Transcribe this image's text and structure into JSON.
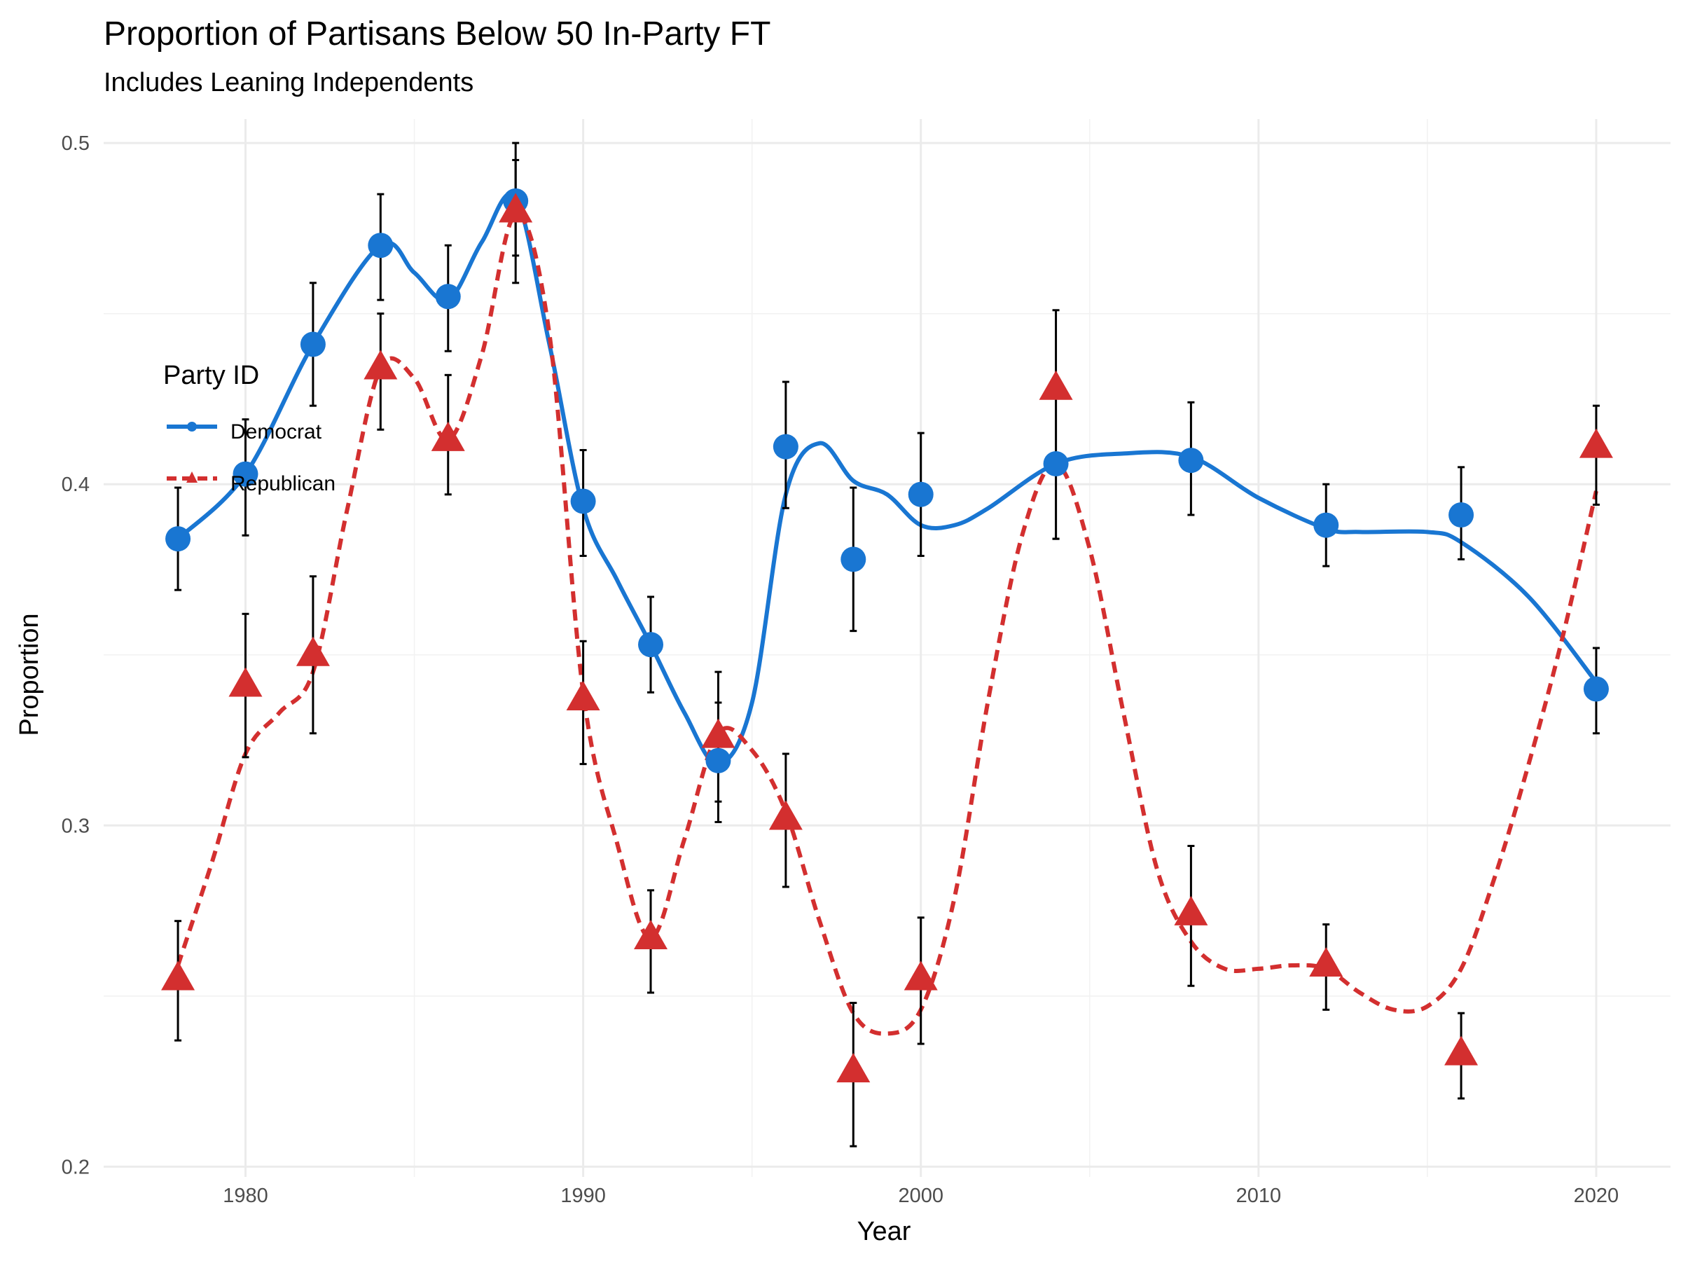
{
  "chart_data": {
    "type": "line",
    "title": "Proportion of Partisans Below 50 In-Party FT",
    "subtitle": "Includes Leaning Independents",
    "xlabel": "Year",
    "ylabel": "Proportion",
    "xlim": [
      1975.8,
      2022.2
    ],
    "ylim": [
      0.197,
      0.507
    ],
    "x_ticks": [
      1980,
      1990,
      2000,
      2010,
      2020
    ],
    "y_ticks": [
      0.2,
      0.3,
      0.4,
      0.5
    ],
    "x_tick_labels": [
      "1980",
      "1990",
      "2000",
      "2010",
      "2020"
    ],
    "y_tick_labels": [
      "0.2",
      "0.3",
      "0.4",
      "0.5"
    ],
    "grid": true,
    "legend": {
      "title": "Party ID",
      "position": "left"
    },
    "series": [
      {
        "name": "Democrat",
        "color": "#1976d2",
        "marker": "circle",
        "line_style": "solid",
        "x": [
          1978,
          1980,
          1982,
          1984,
          1986,
          1988,
          1990,
          1992,
          1994,
          1996,
          1998,
          2000,
          2004,
          2008,
          2012,
          2016,
          2020
        ],
        "y": [
          0.384,
          0.403,
          0.441,
          0.47,
          0.455,
          0.483,
          0.395,
          0.353,
          0.319,
          0.411,
          0.378,
          0.397,
          0.406,
          0.407,
          0.388,
          0.391,
          0.34
        ],
        "error_low": [
          0.369,
          0.385,
          0.423,
          0.454,
          0.439,
          0.467,
          0.379,
          0.339,
          0.301,
          0.393,
          0.357,
          0.379,
          0.384,
          0.391,
          0.376,
          0.378,
          0.327
        ],
        "error_high": [
          0.399,
          0.419,
          0.459,
          0.485,
          0.47,
          0.5,
          0.41,
          0.367,
          0.336,
          0.43,
          0.399,
          0.415,
          0.428,
          0.424,
          0.4,
          0.405,
          0.352
        ],
        "smooth_x": [
          1978,
          1980,
          1982,
          1984,
          1985,
          1986,
          1987,
          1988,
          1989,
          1990,
          1991,
          1992,
          1993,
          1994,
          1995,
          1996,
          1997,
          1998,
          1999,
          2000,
          2001,
          2002,
          2004,
          2006,
          2008,
          2010,
          2012,
          2013,
          2015,
          2016,
          2018,
          2020
        ],
        "smooth_y": [
          0.384,
          0.403,
          0.441,
          0.47,
          0.462,
          0.454,
          0.471,
          0.484,
          0.441,
          0.393,
          0.372,
          0.353,
          0.333,
          0.318,
          0.336,
          0.397,
          0.412,
          0.401,
          0.397,
          0.388,
          0.388,
          0.393,
          0.406,
          0.409,
          0.408,
          0.396,
          0.387,
          0.386,
          0.386,
          0.383,
          0.367,
          0.342
        ]
      },
      {
        "name": "Republican",
        "color": "#d32f2f",
        "marker": "triangle",
        "line_style": "dashed",
        "x": [
          1978,
          1980,
          1982,
          1984,
          1986,
          1988,
          1990,
          1992,
          1994,
          1996,
          1998,
          2000,
          2004,
          2008,
          2012,
          2016,
          2020
        ],
        "y": [
          0.255,
          0.341,
          0.35,
          0.434,
          0.413,
          0.48,
          0.337,
          0.267,
          0.326,
          0.302,
          0.228,
          0.255,
          0.428,
          0.274,
          0.259,
          0.233,
          0.411
        ],
        "error_low": [
          0.237,
          0.32,
          0.327,
          0.416,
          0.397,
          0.459,
          0.318,
          0.251,
          0.307,
          0.282,
          0.206,
          0.236,
          0.384,
          0.253,
          0.246,
          0.22,
          0.394
        ],
        "error_high": [
          0.272,
          0.362,
          0.373,
          0.45,
          0.432,
          0.495,
          0.354,
          0.281,
          0.345,
          0.321,
          0.248,
          0.273,
          0.451,
          0.294,
          0.271,
          0.245,
          0.423
        ],
        "smooth_x": [
          1978,
          1979,
          1980,
          1981,
          1982,
          1983,
          1984,
          1985,
          1986,
          1987,
          1988,
          1989,
          1990,
          1991,
          1992,
          1993,
          1994,
          1995,
          1996,
          1997,
          1998,
          1999,
          2000,
          2001,
          2002,
          2003,
          2004,
          2005,
          2006,
          2007,
          2008,
          2009,
          2010,
          2011,
          2012,
          2013,
          2014,
          2015,
          2016,
          2017,
          2018,
          2019,
          2020
        ],
        "smooth_y": [
          0.259,
          0.289,
          0.321,
          0.333,
          0.345,
          0.392,
          0.434,
          0.431,
          0.413,
          0.438,
          0.479,
          0.444,
          0.339,
          0.295,
          0.267,
          0.296,
          0.327,
          0.322,
          0.304,
          0.272,
          0.245,
          0.239,
          0.246,
          0.279,
          0.337,
          0.385,
          0.406,
          0.381,
          0.333,
          0.287,
          0.266,
          0.258,
          0.258,
          0.259,
          0.258,
          0.251,
          0.246,
          0.247,
          0.258,
          0.285,
          0.318,
          0.355,
          0.398
        ]
      }
    ]
  }
}
